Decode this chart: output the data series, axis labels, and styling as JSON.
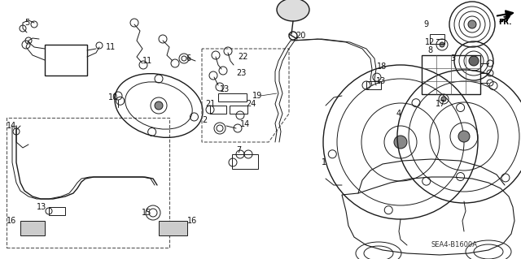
{
  "background_color": "#ffffff",
  "fig_width": 6.4,
  "fig_height": 3.19,
  "dpi": 100,
  "diagram_code": "SEA4-B1600A",
  "line_color": "#1a1a1a",
  "label_fontsize": 7,
  "label_color": "#111111"
}
